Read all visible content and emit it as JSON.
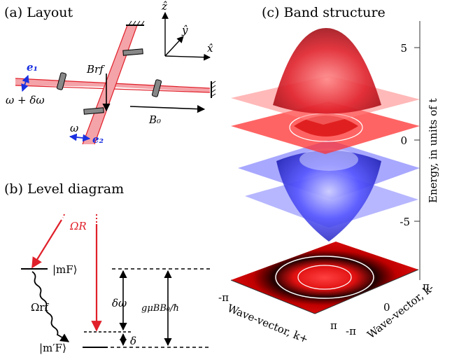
{
  "panels": {
    "a": {
      "title": "(a) Layout"
    },
    "b": {
      "title": "(b) Level diagram"
    },
    "c": {
      "title": "(c) Band structure"
    }
  },
  "layout_labels": {
    "e1": "e₁",
    "e2": "e₂",
    "brf": "Brf",
    "b0": "B₀",
    "omega_plus": "ω + δω",
    "omega": "ω",
    "axis_z": "ẑ",
    "axis_y": "ŷ",
    "axis_x": "x̂"
  },
  "level_labels": {
    "omega_r": "ΩR",
    "mf": "|mF⟩",
    "mf_prime": "|m′F⟩",
    "omega_rf": "Ωrf",
    "delta_omega": "δω",
    "delta": "δ",
    "g_mu_b": "gμBB₀/ħ"
  },
  "band_axes": {
    "energy_label": "Energy, in units of t",
    "energy_ticks": [
      "5",
      "0",
      "-5"
    ],
    "kx_label": "Wave-vector, k+",
    "ky_label": "Wave-vector, k-",
    "kx_ticks": [
      "-π",
      "π"
    ],
    "ky_ticks": [
      "π",
      "0",
      "-π"
    ]
  },
  "colors": {
    "red": "#e0202a",
    "blue": "#2a2ae0",
    "beam": "#f4a3a8"
  }
}
